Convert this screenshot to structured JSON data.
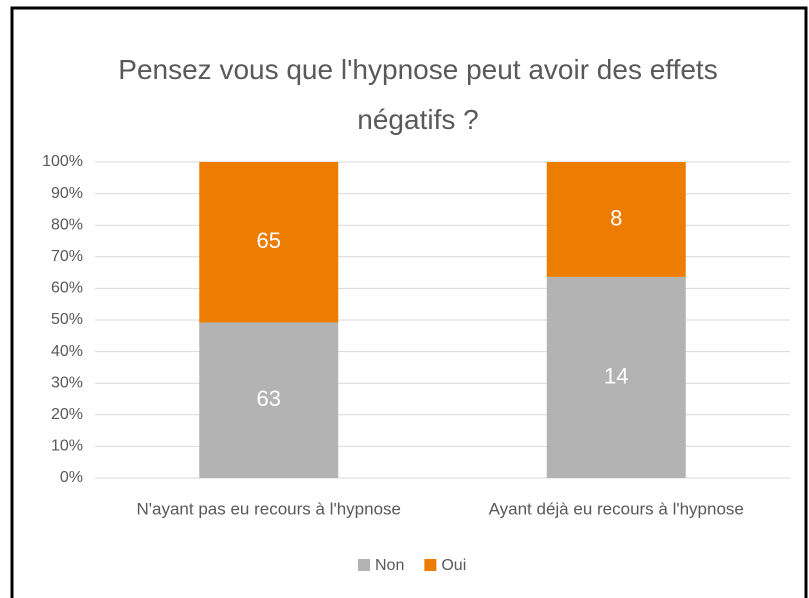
{
  "chart_data": {
    "type": "bar",
    "stacking": "percent",
    "title": "Pensez vous que l'hypnose peut avoir des effets négatifs ?",
    "categories": [
      "N'ayant pas eu recours à l'hypnose",
      "Ayant déjà eu recours à l'hypnose"
    ],
    "series": [
      {
        "name": "Non",
        "color": "#b3b3b3",
        "values": [
          63,
          14
        ]
      },
      {
        "name": "Oui",
        "color": "#ed7d02",
        "values": [
          65,
          8
        ]
      }
    ],
    "ylim": [
      0,
      100
    ],
    "yticks": [
      {
        "value": 0,
        "label": "0%"
      },
      {
        "value": 10,
        "label": "10%"
      },
      {
        "value": 20,
        "label": "20%"
      },
      {
        "value": 30,
        "label": "30%"
      },
      {
        "value": 40,
        "label": "40%"
      },
      {
        "value": 50,
        "label": "50%"
      },
      {
        "value": 60,
        "label": "60%"
      },
      {
        "value": 70,
        "label": "70%"
      },
      {
        "value": 80,
        "label": "80%"
      },
      {
        "value": 90,
        "label": "90%"
      },
      {
        "value": 100,
        "label": "100%"
      }
    ],
    "grid": true,
    "legend": "bottom"
  }
}
